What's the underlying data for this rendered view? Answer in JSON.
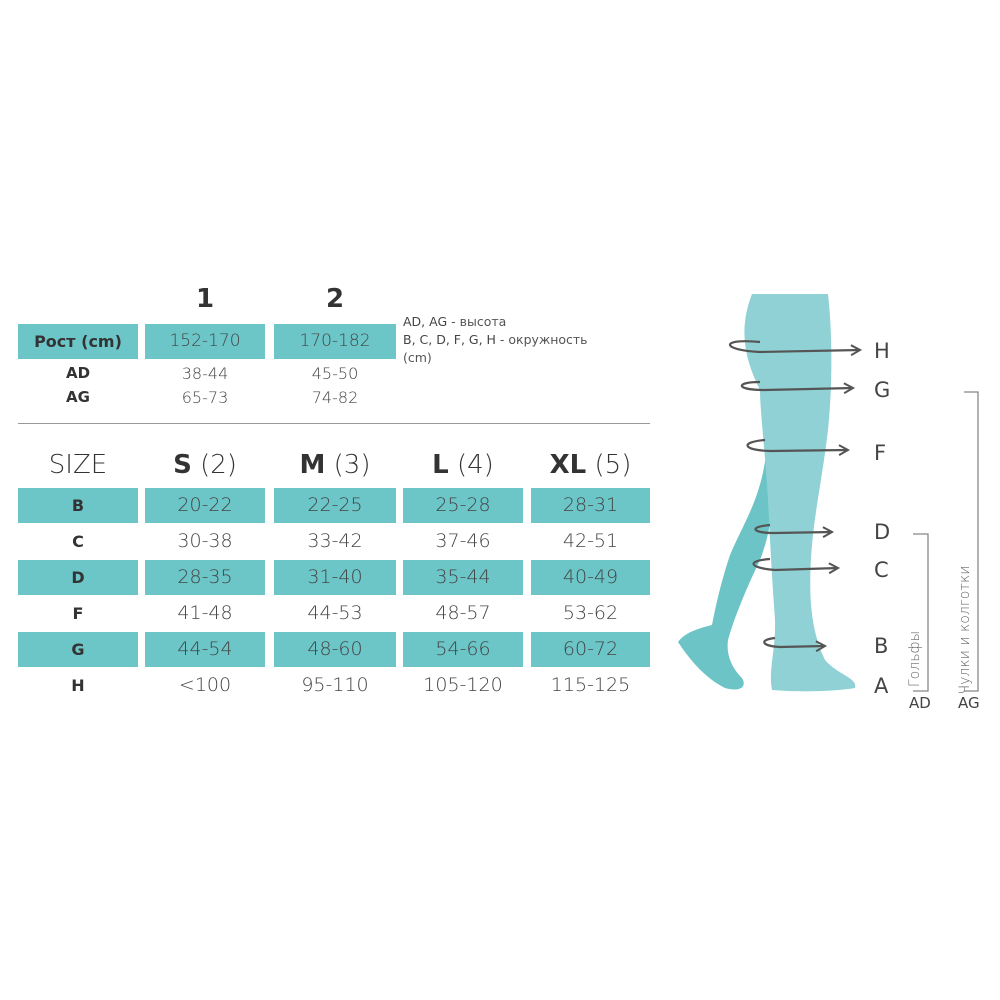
{
  "height_table": {
    "columns": [
      "1",
      "2"
    ],
    "label": "Рост (cm)",
    "heights": [
      "152-170",
      "170-182"
    ],
    "rows": [
      {
        "label": "AD",
        "values": [
          "38-44",
          "45-50"
        ]
      },
      {
        "label": "AG",
        "values": [
          "65-73",
          "74-82"
        ]
      }
    ]
  },
  "legend": {
    "line1_keys": "AD, AG",
    "line1_text": " - высота",
    "line2_keys": "B, C, D, F, G, H",
    "line2_text": " - окружность",
    "line3": "(cm)"
  },
  "size_table": {
    "header_label": "SIZE",
    "sizes": [
      {
        "name": "S",
        "num": "(2)"
      },
      {
        "name": "M",
        "num": "(3)"
      },
      {
        "name": "L",
        "num": "(4)"
      },
      {
        "name": "XL",
        "num": "(5)"
      }
    ],
    "rows": [
      {
        "label": "B",
        "values": [
          "20-22",
          "22-25",
          "25-28",
          "28-31"
        ],
        "highlighted": true
      },
      {
        "label": "C",
        "values": [
          "30-38",
          "33-42",
          "37-46",
          "42-51"
        ],
        "highlighted": false
      },
      {
        "label": "D",
        "values": [
          "28-35",
          "31-40",
          "35-44",
          "40-49"
        ],
        "highlighted": true
      },
      {
        "label": "F",
        "values": [
          "41-48",
          "44-53",
          "48-57",
          "53-62"
        ],
        "highlighted": false
      },
      {
        "label": "G",
        "values": [
          "44-54",
          "48-60",
          "54-66",
          "60-72"
        ],
        "highlighted": true
      },
      {
        "label": "H",
        "values": [
          "<100",
          "95-110",
          "105-120",
          "115-125"
        ],
        "highlighted": false
      }
    ]
  },
  "diagram": {
    "points": [
      "H",
      "G",
      "F",
      "D",
      "C",
      "B",
      "A"
    ],
    "bracket_ad_label": "Гольфы",
    "bracket_ag_label": "Чулки и колготки",
    "ad": "AD",
    "ag": "AG"
  },
  "colors": {
    "teal": "#6cc6c8",
    "leg_front": "#8fd1d4",
    "leg_back": "#6cc4c6",
    "arrow": "#555555"
  }
}
